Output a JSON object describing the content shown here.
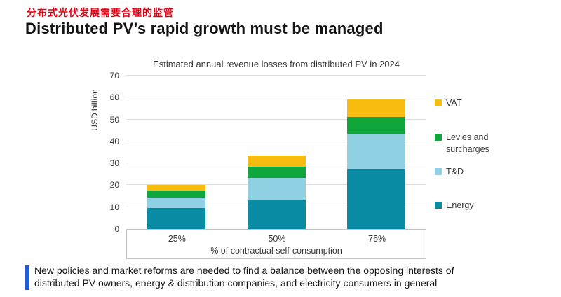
{
  "page": {
    "subtitle_zh": "分布式光伏发展需要合理的监管",
    "title": "Distributed PV’s rapid growth must be managed",
    "footer_lines": [
      "New policies and market reforms are needed to find a balance between the opposing interests of",
      "distributed PV owners, energy & distribution companies, and electricity consumers in general"
    ],
    "accent_red": "#e60012",
    "accent_blue": "#1f5fd6"
  },
  "chart_data": {
    "type": "bar",
    "stacked": true,
    "title": "Estimated annual revenue losses from distributed PV in 2024",
    "ylabel": "USD billion",
    "xlabel": "% of contractual self-consumption",
    "categories": [
      "25%",
      "50%",
      "75%"
    ],
    "series": [
      {
        "name": "Energy",
        "color": "#0a8ba4",
        "values": [
          9.5,
          13,
          27.5
        ]
      },
      {
        "name": "T&D",
        "color": "#8fd0e2",
        "values": [
          5,
          10.5,
          16
        ]
      },
      {
        "name": "Levies and surcharges",
        "color": "#0fa63c",
        "values": [
          3,
          5,
          7.5
        ]
      },
      {
        "name": "VAT",
        "color": "#f8bb0f",
        "values": [
          2.5,
          5,
          8
        ]
      }
    ],
    "totals": [
      20,
      33.5,
      59
    ],
    "ylim": [
      0,
      70
    ],
    "ytick_step": 10,
    "grid": true,
    "legend_position": "right",
    "legend_order_top_to_bottom": [
      "VAT",
      "Levies and surcharges",
      "T&D",
      "Energy"
    ]
  }
}
